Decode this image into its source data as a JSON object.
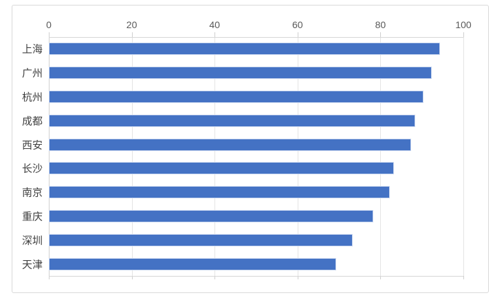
{
  "chart_data": {
    "type": "bar",
    "orientation": "horizontal",
    "title": "",
    "xlabel": "",
    "ylabel": "",
    "categories": [
      "上海",
      "广州",
      "杭州",
      "成都",
      "西安",
      "长沙",
      "南京",
      "重庆",
      "深圳",
      "天津"
    ],
    "values": [
      94,
      92,
      90,
      88,
      87,
      83,
      82,
      78,
      73,
      69
    ],
    "xlim": [
      0,
      100
    ],
    "x_ticks": [
      "0",
      "20",
      "40",
      "60",
      "80",
      "100"
    ],
    "x_tick_values": [
      0,
      20,
      40,
      60,
      80,
      100
    ],
    "grid": true,
    "legend": false,
    "colors": {
      "bar": "#4472C4",
      "bar_edge": "#CBD8F0",
      "gridline": "#E4E4E4",
      "axis_line": "#D6D6D6",
      "tick_label": "#595959",
      "category_label": "#404040",
      "frame_border": "#D9D9D9",
      "background": "#FFFFFF"
    }
  }
}
